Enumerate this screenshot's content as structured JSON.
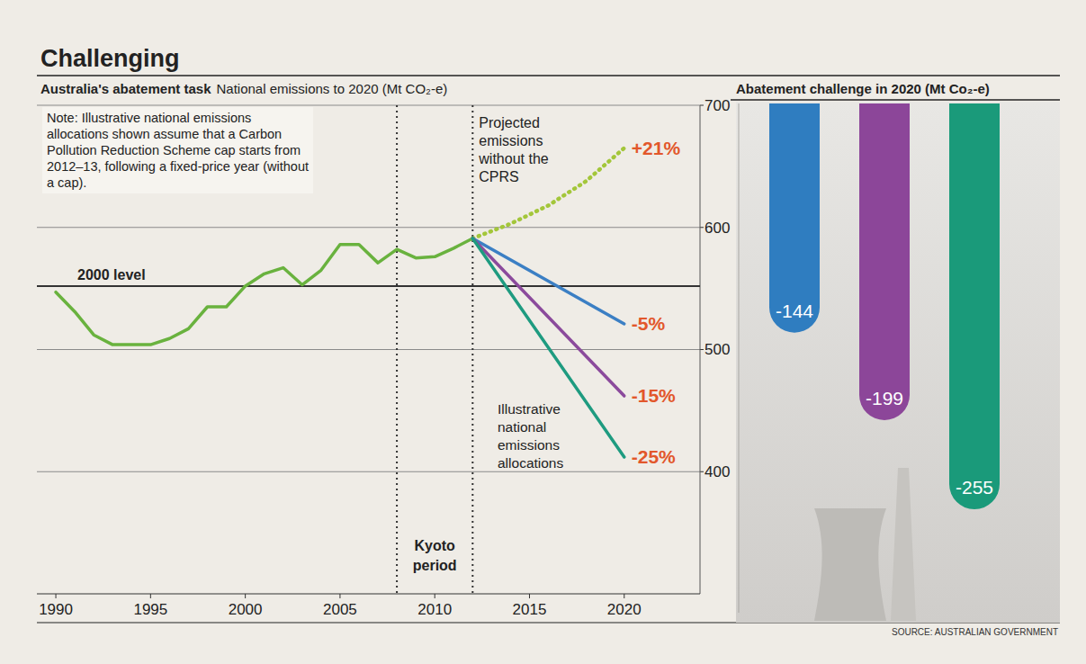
{
  "chart_data": [
    {
      "type": "line",
      "title": "Challenging",
      "subtitle": "Australia's abatement task",
      "y_label": "National emissions to 2020 (Mt CO₂-e)",
      "note": "Note: Illustrative national emissions allocations shown assume that a Carbon Pollution Reduction Scheme cap starts from 2012–13, following a fixed-price year (without a cap).",
      "xlim": [
        1989,
        2024
      ],
      "xticks": [
        1990,
        1995,
        2000,
        2005,
        2010,
        2015,
        2020
      ],
      "ylim": [
        300,
        700
      ],
      "yticks": [
        400,
        500,
        600,
        700
      ],
      "grid": true,
      "series": [
        {
          "color": "#69b23e",
          "line_style": "solid",
          "x": [
            1990,
            1991,
            1992,
            1993,
            1994,
            1995,
            1996,
            1997,
            1998,
            1999,
            2000,
            2001,
            2002,
            2003,
            2004,
            2005,
            2006,
            2007,
            2008,
            2009,
            2010,
            2011,
            2012
          ],
          "values": [
            547,
            531,
            512,
            504,
            504,
            504,
            509,
            517,
            535,
            535,
            552,
            562,
            567,
            553,
            565,
            586,
            586,
            571,
            582,
            575,
            576,
            583,
            591
          ]
        },
        {
          "name": "Projected emissions without the CPRS",
          "color": "#a3c63a",
          "line_style": "dotted",
          "x": [
            2012,
            2014,
            2016,
            2018,
            2020
          ],
          "values": [
            591,
            603,
            618,
            638,
            665
          ],
          "end_label": "+21%"
        },
        {
          "color": "#3b7fc4",
          "line_style": "solid",
          "x": [
            2012,
            2020
          ],
          "values": [
            591,
            521
          ],
          "end_label": "-5%"
        },
        {
          "color": "#8b4a9c",
          "line_style": "solid",
          "x": [
            2012,
            2020
          ],
          "values": [
            591,
            462
          ],
          "end_label": "-15%"
        },
        {
          "color": "#1e9b80",
          "line_style": "solid",
          "x": [
            2012,
            2020
          ],
          "values": [
            591,
            412
          ],
          "end_label": "-25%"
        }
      ],
      "annotations": {
        "allocations_label": "Illustrative national emissions allocations",
        "reference_line": {
          "label": "2000 level",
          "value": 552
        },
        "kyoto_period": {
          "label": "Kyoto period",
          "x": [
            2008,
            2012
          ]
        }
      }
    },
    {
      "type": "bar",
      "title": "Abatement challenge in 2020 (Mt Co₂-e)",
      "categories": [
        null,
        null,
        null
      ],
      "values": [
        -144,
        -199,
        -255
      ],
      "colors": [
        "#2f7dc0",
        "#8c4699",
        "#1a9a7a"
      ],
      "ylim": [
        -320,
        0
      ],
      "yticks": [],
      "tick_labels": false,
      "data_labels": true,
      "source": "SOURCE: AUSTRALIAN GOVERNMENT"
    }
  ]
}
